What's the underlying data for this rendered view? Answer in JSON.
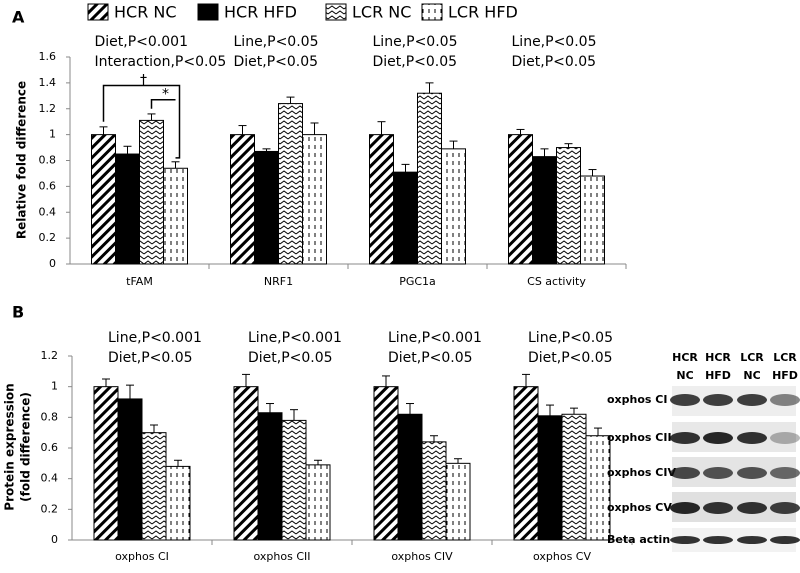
{
  "chart_data": [
    {
      "type": "bar",
      "panel_label": "A",
      "ylabel": "Relative fold difference",
      "categories": [
        "tFAM",
        "NRF1",
        "PGC1a",
        "CS activity"
      ],
      "series": [
        {
          "name": "HCR NC",
          "color": "#000000",
          "fill": "diagonal",
          "values": [
            1.0,
            1.0,
            1.0,
            1.0
          ],
          "errors": [
            0.06,
            0.07,
            0.1,
            0.04
          ]
        },
        {
          "name": "HCR HFD",
          "color": "#000000",
          "fill": "solid",
          "values": [
            0.85,
            0.87,
            0.71,
            0.83
          ],
          "errors": [
            0.06,
            0.02,
            0.06,
            0.06
          ]
        },
        {
          "name": "LCR NC",
          "color": "#000000",
          "fill": "zigzag",
          "values": [
            1.11,
            1.24,
            1.32,
            0.9
          ],
          "errors": [
            0.05,
            0.05,
            0.08,
            0.03
          ]
        },
        {
          "name": "LCR HFD",
          "color": "#000000",
          "fill": "dashes",
          "values": [
            0.74,
            1.0,
            0.89,
            0.68
          ],
          "errors": [
            0.05,
            0.09,
            0.06,
            0.05
          ]
        }
      ],
      "stats": [
        [
          "Diet,P<0.001",
          "Interaction,P<0.05"
        ],
        [
          "Line,P<0.05",
          "Diet,P<0.05"
        ],
        [
          "Line,P<0.05",
          "Diet,P<0.05"
        ],
        [
          "Line,P<0.05",
          "Diet,P<0.05"
        ]
      ],
      "annotations": [
        "†",
        "*"
      ],
      "ylim": [
        0,
        1.6
      ],
      "yticks": [
        0,
        0.2,
        0.4,
        0.6,
        0.8,
        1,
        1.2,
        1.4,
        1.6
      ],
      "legend": "top"
    },
    {
      "type": "bar",
      "panel_label": "B",
      "ylabel": [
        "Protein expression",
        "(fold difference)"
      ],
      "categories": [
        "oxphos CI",
        "oxphos CII",
        "oxphos CIV",
        "oxphos CV"
      ],
      "series": [
        {
          "color": "#000000",
          "fill": "diagonal",
          "values": [
            1.0,
            1.0,
            1.0,
            1.0
          ],
          "errors": [
            0.05,
            0.08,
            0.07,
            0.08
          ]
        },
        {
          "color": "#000000",
          "fill": "solid",
          "values": [
            0.92,
            0.83,
            0.82,
            0.81
          ],
          "errors": [
            0.09,
            0.06,
            0.07,
            0.07
          ]
        },
        {
          "color": "#000000",
          "fill": "zigzag",
          "values": [
            0.7,
            0.78,
            0.64,
            0.82
          ],
          "errors": [
            0.05,
            0.07,
            0.04,
            0.04
          ]
        },
        {
          "color": "#000000",
          "fill": "dashes",
          "values": [
            0.48,
            0.49,
            0.5,
            0.68
          ],
          "errors": [
            0.04,
            0.03,
            0.03,
            0.05
          ]
        }
      ],
      "stats": [
        [
          "Line,P<0.001",
          "Diet,P<0.05"
        ],
        [
          "Line,P<0.001",
          "Diet,P<0.05"
        ],
        [
          "Line,P<0.001",
          "Diet,P<0.05"
        ],
        [
          "Line,P<0.05",
          "Diet,P<0.05"
        ]
      ],
      "ylim": [
        0,
        1.2
      ],
      "yticks": [
        0,
        0.2,
        0.4,
        0.6,
        0.8,
        1,
        1.2
      ]
    }
  ],
  "blot": {
    "columns": [
      [
        "HCR",
        "NC"
      ],
      [
        "HCR",
        "HFD"
      ],
      [
        "LCR",
        "NC"
      ],
      [
        "LCR",
        "HFD"
      ]
    ],
    "rows": [
      "oxphos CI",
      "oxphos CII",
      "oxphos CIV",
      "oxphos CV",
      "Beta actin"
    ]
  }
}
